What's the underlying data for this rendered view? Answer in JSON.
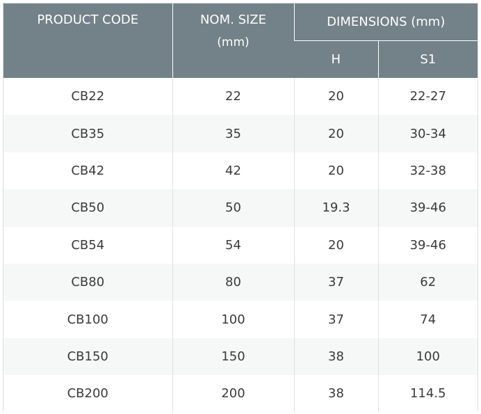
{
  "header": {
    "product_code": "PRODUCT CODE",
    "nom_size": "NOM. SIZE",
    "nom_size_unit": "(mm)",
    "dimensions": "DIMENSIONS (mm)",
    "h": "H",
    "s1": "S1"
  },
  "rows": [
    {
      "code": "CB22",
      "size": "22",
      "h": "20",
      "s1": "22-27"
    },
    {
      "code": "CB35",
      "size": "35",
      "h": "20",
      "s1": "30-34"
    },
    {
      "code": "CB42",
      "size": "42",
      "h": "20",
      "s1": "32-38"
    },
    {
      "code": "CB50",
      "size": "50",
      "h": "19.3",
      "s1": "39-46"
    },
    {
      "code": "CB54",
      "size": "54",
      "h": "20",
      "s1": "39-46"
    },
    {
      "code": "CB80",
      "size": "80",
      "h": "37",
      "s1": "62"
    },
    {
      "code": "CB100",
      "size": "100",
      "h": "37",
      "s1": "74"
    },
    {
      "code": "CB150",
      "size": "150",
      "h": "38",
      "s1": "100"
    },
    {
      "code": "CB200",
      "size": "200",
      "h": "38",
      "s1": "114.5"
    }
  ]
}
